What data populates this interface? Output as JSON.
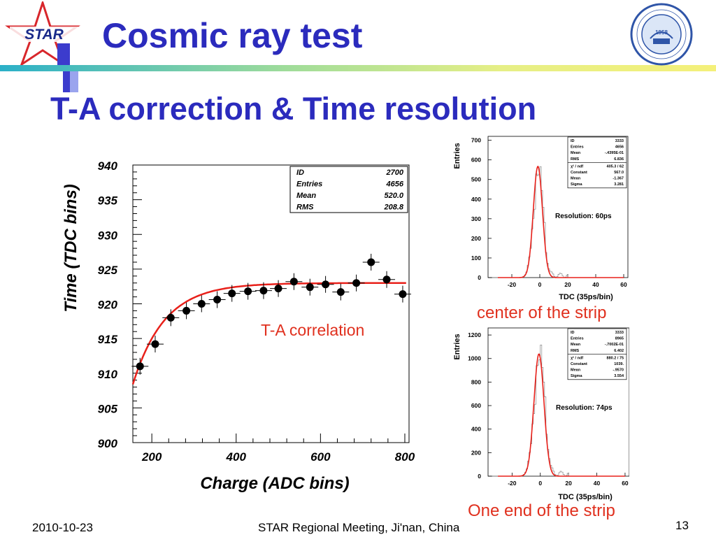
{
  "slide": {
    "title": "Cosmic ray test",
    "subtitle": "T-A correction & Time resolution",
    "logo_text": "STAR",
    "university_seal_text": "1958",
    "footer_date": "2010-10-23",
    "footer_center": "STAR Regional Meeting, Ji'nan, China",
    "page_number": "13",
    "center_label": "center of the strip",
    "end_label": "One end of the strip",
    "colors": {
      "title": "#2b2bbd",
      "annotation": "#e0301e",
      "fit": "#e8201a"
    }
  },
  "chart_data": [
    {
      "type": "scatter",
      "title": "",
      "annotation": "T-A correlation",
      "xlabel": "Charge (ADC bins)",
      "ylabel": "Time (TDC bins)",
      "xlim": [
        155,
        810
      ],
      "ylim": [
        900,
        940
      ],
      "xticks": [
        "200",
        "400",
        "600",
        "800"
      ],
      "yticks": [
        "900",
        "905",
        "910",
        "915",
        "920",
        "925",
        "930",
        "935",
        "940"
      ],
      "stats": [
        [
          "ID",
          "2700"
        ],
        [
          "Entries",
          "4656"
        ],
        [
          "Mean",
          "520.0"
        ],
        [
          "RMS",
          "208.8"
        ]
      ],
      "points": [
        [
          172,
          911.0
        ],
        [
          208,
          914.2
        ],
        [
          245,
          918.0
        ],
        [
          282,
          919.0
        ],
        [
          318,
          920.0
        ],
        [
          355,
          920.6
        ],
        [
          390,
          921.5
        ],
        [
          428,
          921.8
        ],
        [
          465,
          921.9
        ],
        [
          500,
          922.2
        ],
        [
          537,
          923.2
        ],
        [
          575,
          922.4
        ],
        [
          612,
          922.8
        ],
        [
          648,
          921.7
        ],
        [
          685,
          923.0
        ],
        [
          720,
          926.0
        ],
        [
          757,
          923.5
        ],
        [
          795,
          921.4
        ]
      ],
      "fit": {
        "form": "exponential saturation",
        "plateau": 923.0,
        "start": [
          155,
          908.4
        ],
        "decay": 75
      }
    },
    {
      "type": "histogram",
      "title": "",
      "annotation": "Resolution: 60ps",
      "xlabel": "TDC (35ps/bin)",
      "ylabel": "Entries",
      "xlim": [
        -37,
        63
      ],
      "ylim": [
        0,
        720
      ],
      "xticks": [
        "-20",
        "0",
        "20",
        "40",
        "60"
      ],
      "yticks": [
        "0",
        "100",
        "200",
        "300",
        "400",
        "500",
        "600",
        "700"
      ],
      "stats": [
        [
          "ID",
          "3333"
        ],
        [
          "Entries",
          "4656"
        ],
        [
          "Mean",
          "-.4395E-01"
        ],
        [
          "RMS",
          "6.836"
        ]
      ],
      "fit_stats": [
        [
          "χ² / ndf",
          "405.3  /  62"
        ],
        [
          "Constant",
          "567.0"
        ],
        [
          "Mean",
          "-1.367"
        ],
        [
          "Sigma",
          "3.281"
        ]
      ],
      "gaussian": {
        "constant": 567.0,
        "mean": -1.367,
        "sigma": 3.281
      }
    },
    {
      "type": "histogram",
      "title": "",
      "annotation": "Resolution: 74ps",
      "xlabel": "TDC (35ps/bin)",
      "ylabel": "Entries",
      "xlim": [
        -37,
        63
      ],
      "ylim": [
        0,
        1260
      ],
      "xticks": [
        "-20",
        "0",
        "20",
        "40",
        "60"
      ],
      "yticks": [
        "0",
        "200",
        "400",
        "600",
        "800",
        "1000",
        "1200"
      ],
      "stats": [
        [
          "ID",
          "3333"
        ],
        [
          "Entries",
          "8965"
        ],
        [
          "Mean",
          "-.7002E-01"
        ],
        [
          "RMS",
          "6.402"
        ]
      ],
      "fit_stats": [
        [
          "χ² / ndf",
          "880.2  /  75"
        ],
        [
          "Constant",
          "1039."
        ],
        [
          "Mean",
          "-.9570"
        ],
        [
          "Sigma",
          "3.554"
        ]
      ],
      "gaussian": {
        "constant": 1039,
        "mean": -0.957,
        "sigma": 3.554
      }
    }
  ]
}
